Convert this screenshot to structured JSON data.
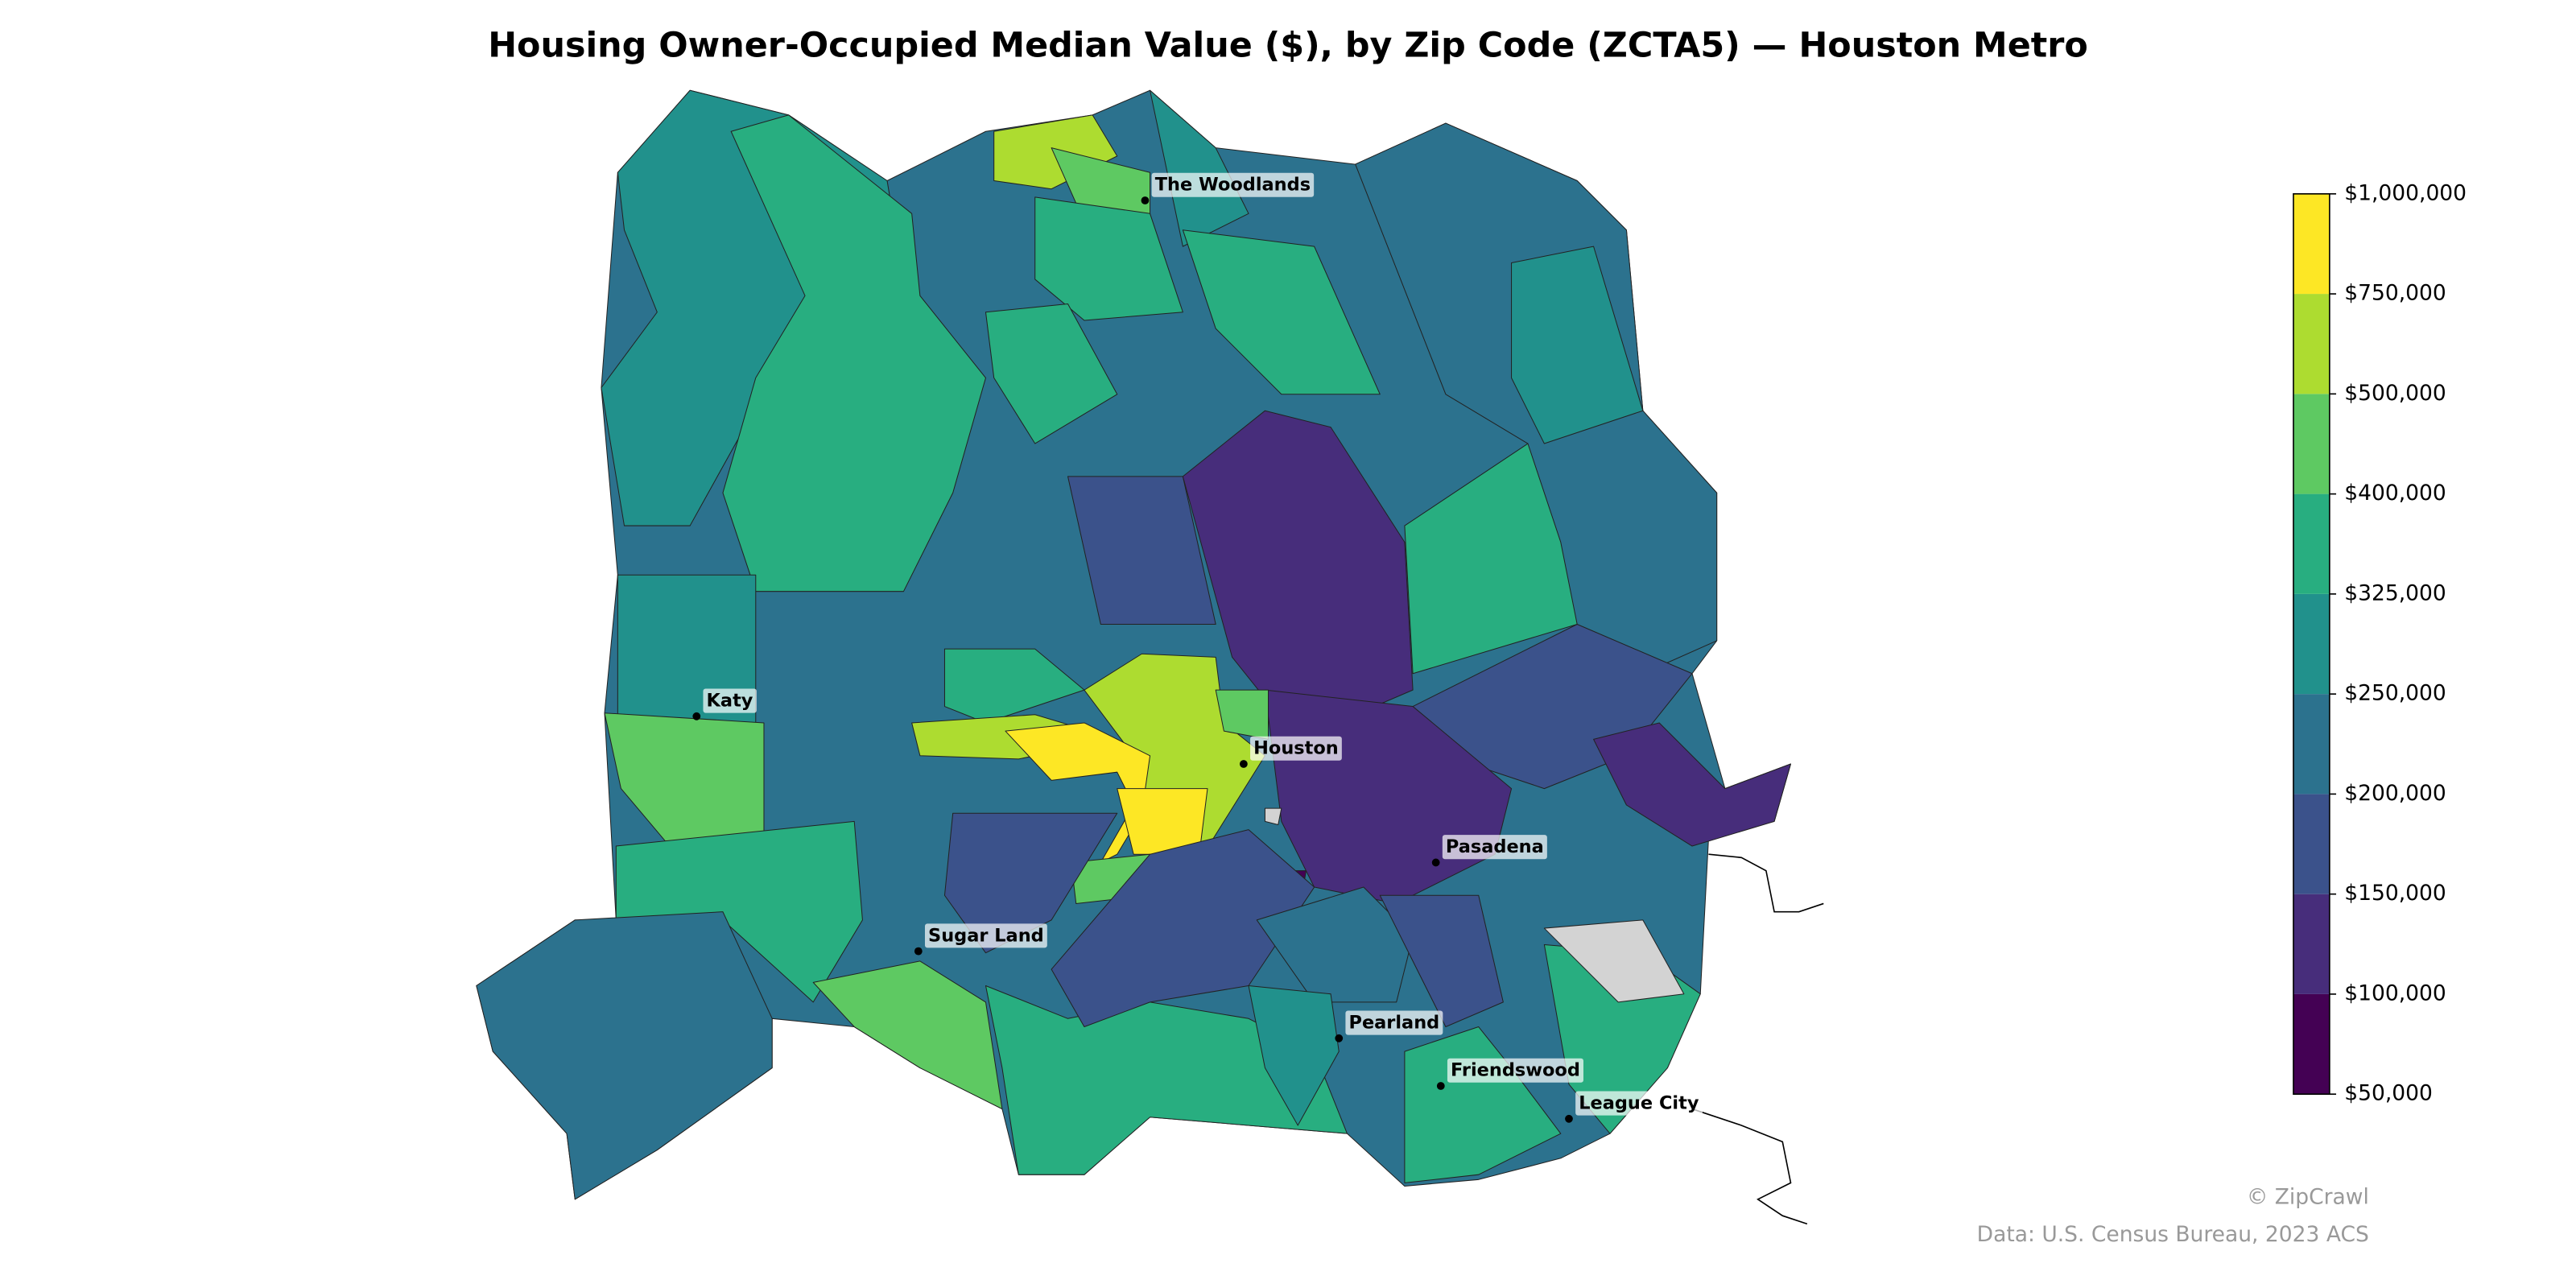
{
  "title": "Housing Owner-Occupied Median Value ($), by Zip Code (ZCTA5) — Houston Metro",
  "places": [
    "The Woodlands",
    "Katy",
    "Houston",
    "Pasadena",
    "Sugar Land",
    "Pearland",
    "Friendswood",
    "League City"
  ],
  "colorbar": {
    "ticks": [
      {
        "value": 50000,
        "label": "$50,000"
      },
      {
        "value": 100000,
        "label": "$100,000"
      },
      {
        "value": 150000,
        "label": "$150,000"
      },
      {
        "value": 200000,
        "label": "$200,000"
      },
      {
        "value": 250000,
        "label": "$250,000"
      },
      {
        "value": 325000,
        "label": "$325,000"
      },
      {
        "value": 400000,
        "label": "$400,000"
      },
      {
        "value": 500000,
        "label": "$500,000"
      },
      {
        "value": 750000,
        "label": "$750,000"
      },
      {
        "value": 1000000,
        "label": "$1,000,000"
      }
    ],
    "colors": [
      "#440154",
      "#472d7b",
      "#3b528b",
      "#2c728e",
      "#21918c",
      "#28ae80",
      "#5ec962",
      "#addc30",
      "#fde725"
    ]
  },
  "credit": "© ZipCrawl",
  "source": "Data: U.S. Census Bureau, 2023 ACS"
}
